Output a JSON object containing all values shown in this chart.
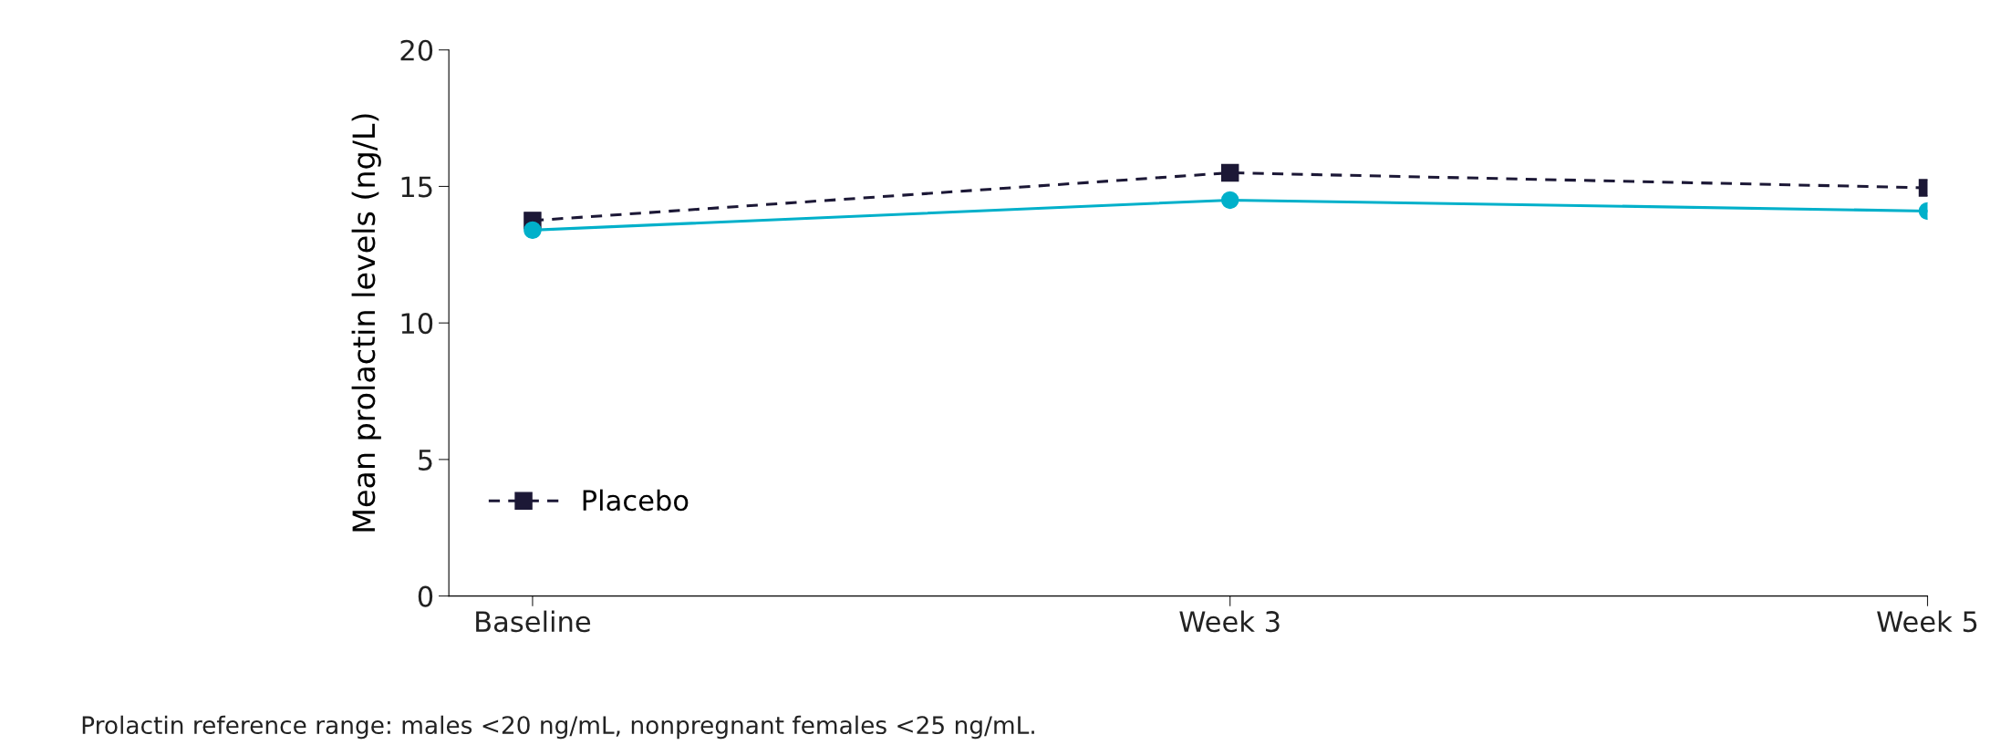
{
  "chart_data": {
    "type": "line",
    "ylabel": "Mean prolactin levels (ng/L)",
    "categories": [
      "Baseline",
      "Week 3",
      "Week 5"
    ],
    "ylim": [
      0,
      20
    ],
    "yticks": [
      0,
      5,
      10,
      15,
      20
    ],
    "series": [
      {
        "name": "Placebo",
        "color": "#1c1836",
        "values": [
          13.75,
          15.5,
          14.95
        ],
        "marker": "square",
        "line_style": "dashed"
      },
      {
        "color": "#00b0ca",
        "values": [
          13.4,
          14.5,
          14.1
        ],
        "marker": "circle",
        "line_style": "solid"
      }
    ],
    "annotations": [
      "Prolactin reference range: males <20 ng/mL, nonpregnant females <25 ng/mL."
    ],
    "legend": "bottom left",
    "grid": false
  }
}
